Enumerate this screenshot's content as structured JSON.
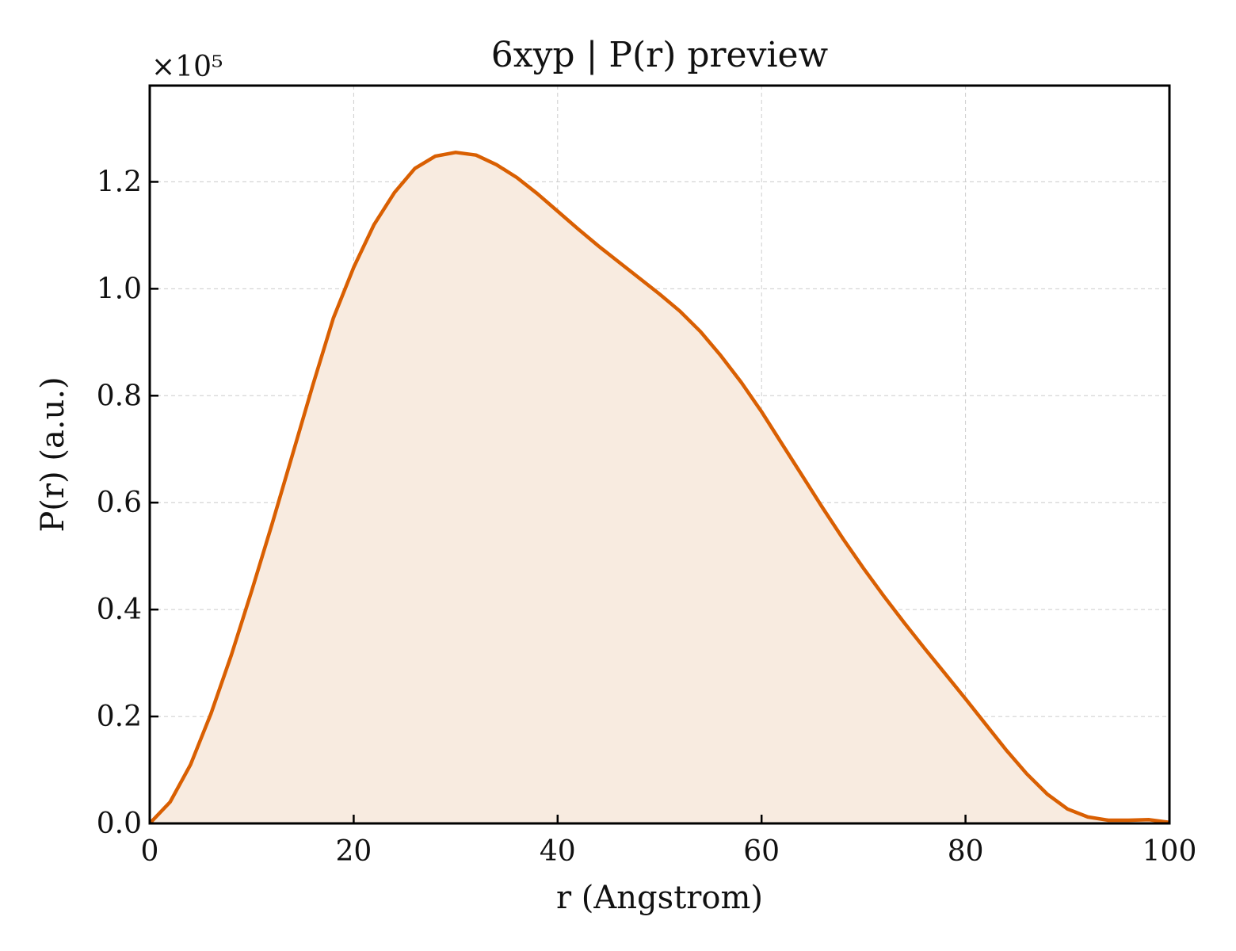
{
  "chart_data": {
    "type": "area",
    "title": "6xyp | P(r) preview",
    "xlabel": "r (Angstrom)",
    "ylabel": "P(r) (a.u.)",
    "y_offset_text": "×10⁵",
    "y_multiplier": 100000,
    "xlim": [
      0,
      100
    ],
    "ylim": [
      0,
      1.38
    ],
    "xticks": [
      0,
      20,
      40,
      60,
      80,
      100
    ],
    "xtick_labels": [
      "0",
      "20",
      "40",
      "60",
      "80",
      "100"
    ],
    "yticks": [
      0.0,
      0.2,
      0.4,
      0.6,
      0.8,
      1.0,
      1.2
    ],
    "ytick_labels": [
      "0.0",
      "0.2",
      "0.4",
      "0.6",
      "0.8",
      "1.0",
      "1.2"
    ],
    "grid": true,
    "line_color": "#d95f02",
    "fill_color": "#f8ebe0",
    "series": [
      {
        "x": [
          0,
          2,
          4,
          6,
          8,
          10,
          12,
          14,
          16,
          18,
          20,
          22,
          24,
          26,
          28,
          30,
          32,
          34,
          36,
          38,
          40,
          42,
          44,
          46,
          48,
          50,
          52,
          54,
          56,
          58,
          60,
          62,
          64,
          66,
          68,
          70,
          72,
          74,
          76,
          78,
          80,
          82,
          84,
          86,
          88,
          90,
          92,
          94,
          96,
          98,
          100
        ],
        "y": [
          0.0,
          0.04,
          0.11,
          0.205,
          0.315,
          0.435,
          0.56,
          0.69,
          0.82,
          0.945,
          1.04,
          1.12,
          1.18,
          1.225,
          1.248,
          1.255,
          1.25,
          1.232,
          1.208,
          1.178,
          1.145,
          1.112,
          1.08,
          1.05,
          1.02,
          0.99,
          0.958,
          0.92,
          0.875,
          0.825,
          0.77,
          0.71,
          0.65,
          0.59,
          0.532,
          0.477,
          0.425,
          0.375,
          0.327,
          0.28,
          0.233,
          0.185,
          0.137,
          0.093,
          0.055,
          0.027,
          0.012,
          0.006,
          0.006,
          0.007,
          0.002
        ]
      }
    ]
  }
}
